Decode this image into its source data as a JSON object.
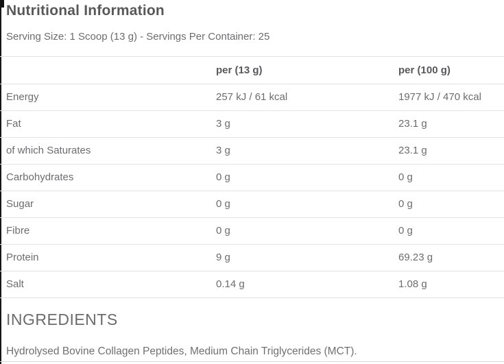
{
  "page": {
    "title": "Nutritional Information",
    "serving_info": "Serving Size: 1 Scoop (13 g) - Servings Per Container: 25"
  },
  "nutrition_table": {
    "columns": [
      "",
      "per (13 g)",
      "per (100 g)"
    ],
    "rows": [
      {
        "name": "Energy",
        "per_serving": "257 kJ / 61 kcal",
        "per_100g": "1977 kJ / 470 kcal"
      },
      {
        "name": "Fat",
        "per_serving": "3 g",
        "per_100g": "23.1 g"
      },
      {
        "name": "of which Saturates",
        "per_serving": "3 g",
        "per_100g": "23.1 g"
      },
      {
        "name": "Carbohydrates",
        "per_serving": "0 g",
        "per_100g": "0 g"
      },
      {
        "name": "Sugar",
        "per_serving": "0 g",
        "per_100g": "0 g"
      },
      {
        "name": "Fibre",
        "per_serving": "0 g",
        "per_100g": "0 g"
      },
      {
        "name": "Protein",
        "per_serving": "9 g",
        "per_100g": "69.23 g"
      },
      {
        "name": "Salt",
        "per_serving": "0.14 g",
        "per_100g": "1.08 g"
      }
    ]
  },
  "ingredients": {
    "heading": "INGREDIENTS",
    "text": "Hydrolysed Bovine Collagen Peptides, Medium Chain Triglycerides (MCT)."
  },
  "colors": {
    "heading_text": "#57585a",
    "body_text": "#6b6c6e",
    "divider": "#e2e2e2",
    "edge_border": "#161616"
  }
}
